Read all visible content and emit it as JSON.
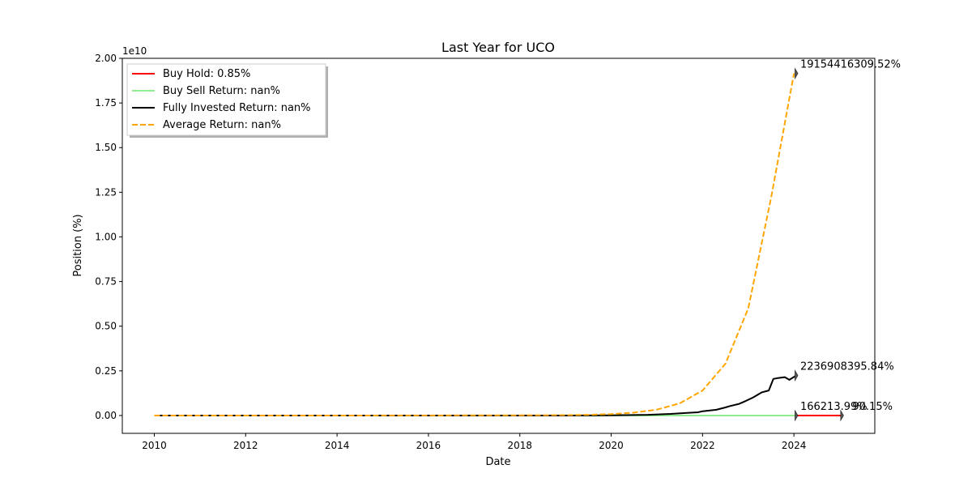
{
  "chart_data": {
    "type": "line",
    "title": "Last Year for UCO",
    "xlabel": "Date",
    "ylabel": "Position (%)",
    "y_offset_label": "1e10",
    "xlim": [
      2009.3,
      2025.77
    ],
    "ylim": [
      -0.1,
      2.0
    ],
    "y_unit_multiplier": 10000000000,
    "x_ticks": [
      2010,
      2012,
      2014,
      2016,
      2018,
      2020,
      2022,
      2024
    ],
    "x_tick_labels": [
      "2010",
      "2012",
      "2014",
      "2016",
      "2018",
      "2020",
      "2022",
      "2024"
    ],
    "y_ticks": [
      0.0,
      0.25,
      0.5,
      0.75,
      1.0,
      1.25,
      1.5,
      1.75,
      2.0
    ],
    "y_tick_labels": [
      "0.00",
      "0.25",
      "0.50",
      "0.75",
      "1.00",
      "1.25",
      "1.50",
      "1.75",
      "2.00"
    ],
    "legend_position": "top-left",
    "series": [
      {
        "name": "Buy Hold",
        "legend_label": "Buy Hold: 0.85%",
        "color": "#ff0000",
        "dash": "solid",
        "x": [
          2024.05,
          2025.05
        ],
        "y": [
          0.0,
          0.0
        ],
        "end_label": "90.15%",
        "end_x": 2025.05,
        "end_y": 0.0
      },
      {
        "name": "Buy Sell Return",
        "legend_label": "Buy Sell Return: nan%",
        "color": "#90ee90",
        "dash": "solid",
        "x": [
          2010.0,
          2024.05
        ],
        "y": [
          0.0,
          0.0
        ],
        "end_label": "166213.99%",
        "end_x": 2024.05,
        "end_y": 0.0
      },
      {
        "name": "Fully Invested Return",
        "legend_label": "Fully Invested Return: nan%",
        "color": "#000000",
        "dash": "solid",
        "x": [
          2010.0,
          2019.0,
          2020.0,
          2020.8,
          2021.3,
          2021.7,
          2021.9,
          2022.0,
          2022.3,
          2022.5,
          2022.6,
          2022.8,
          2022.95,
          2023.1,
          2023.2,
          2023.3,
          2023.45,
          2023.55,
          2023.65,
          2023.8,
          2023.9,
          2024.05
        ],
        "y": [
          0.0,
          0.0,
          0.001,
          0.004,
          0.009,
          0.015,
          0.018,
          0.024,
          0.032,
          0.045,
          0.053,
          0.065,
          0.082,
          0.1,
          0.115,
          0.13,
          0.14,
          0.205,
          0.21,
          0.215,
          0.2,
          0.224
        ],
        "end_label": "2236908395.84%",
        "end_x": 2024.05,
        "end_y": 0.2236908395
      },
      {
        "name": "Average Return",
        "legend_label": "Average Return: nan%",
        "color": "#ffa500",
        "dash": "dashed",
        "x": [
          2010.0,
          2014.0,
          2018.0,
          2019.0,
          2019.5,
          2020.0,
          2020.5,
          2021.0,
          2021.5,
          2022.0,
          2022.5,
          2023.0,
          2023.5,
          2024.0
        ],
        "y": [
          0.0,
          0.0,
          0.001,
          0.002,
          0.004,
          0.008,
          0.016,
          0.033,
          0.068,
          0.14,
          0.29,
          0.6,
          1.22,
          1.9154
        ],
        "end_label": "19154416309.52%",
        "end_x": 2024.05,
        "end_y": 1.9154416309
      }
    ]
  }
}
